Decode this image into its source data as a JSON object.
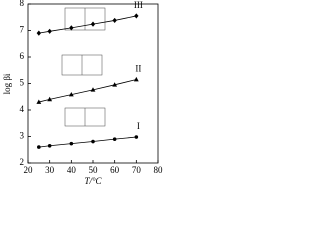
{
  "chart_data": {
    "type": "line",
    "x_label": "T/°C",
    "y_label": "log βi",
    "xlim": [
      20,
      80
    ],
    "xticks": [
      20,
      30,
      40,
      50,
      60,
      70,
      80
    ],
    "ylim": [
      2,
      8
    ],
    "yticks": [
      2,
      3,
      4,
      5,
      6,
      7,
      8
    ],
    "x": [
      25,
      30,
      40,
      50,
      60,
      70
    ],
    "series": [
      {
        "name": "I",
        "color": "#000000",
        "marker": "circle",
        "values": [
          2.6,
          2.65,
          2.73,
          2.81,
          2.9,
          2.98
        ]
      },
      {
        "name": "II",
        "color": "#000000",
        "marker": "triangle",
        "values": [
          4.3,
          4.4,
          4.58,
          4.76,
          4.95,
          5.15
        ]
      },
      {
        "name": "III",
        "color": "#000000",
        "marker": "diamond",
        "values": [
          6.9,
          6.97,
          7.1,
          7.24,
          7.38,
          7.55
        ]
      }
    ]
  }
}
